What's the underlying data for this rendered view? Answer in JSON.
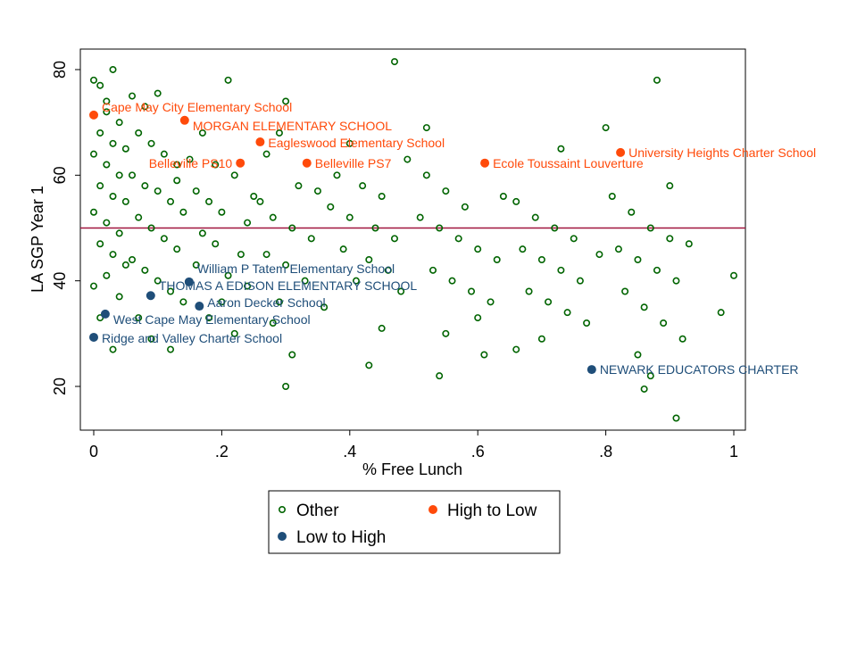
{
  "chart_data": {
    "type": "scatter",
    "title": "",
    "xlabel": "% Free Lunch",
    "ylabel": "LA SGP Year 1",
    "xlim": [
      -0.02,
      1.02
    ],
    "ylim": [
      11,
      84
    ],
    "xticks": [
      0,
      0.2,
      0.4,
      0.6,
      0.8,
      1
    ],
    "xtick_labels": [
      "0",
      ".2",
      ".4",
      ".6",
      ".8",
      "1"
    ],
    "yticks": [
      20,
      40,
      60,
      80
    ],
    "ytick_labels": [
      "20",
      "40",
      "60",
      "80"
    ],
    "grid": false,
    "reference_line": {
      "y": 50,
      "color": "#A0153E"
    },
    "legend": {
      "placement": "bottom",
      "entries": [
        "Other",
        "High to Low",
        "Low to High"
      ]
    },
    "colors": {
      "Other": "#006400",
      "High to Low": "#FF4A0A",
      "Low to High": "#1F4E79"
    },
    "series": [
      {
        "name": "Other",
        "marker": "hollow-circle",
        "points": [
          [
            0,
            78
          ],
          [
            0.01,
            77
          ],
          [
            0.03,
            80
          ],
          [
            0.02,
            72
          ],
          [
            0.01,
            68
          ],
          [
            0.03,
            66
          ],
          [
            0.0,
            64
          ],
          [
            0.02,
            62
          ],
          [
            0.04,
            60
          ],
          [
            0.01,
            58
          ],
          [
            0.03,
            56
          ],
          [
            0.05,
            55
          ],
          [
            0.0,
            53
          ],
          [
            0.02,
            51
          ],
          [
            0.04,
            49
          ],
          [
            0.01,
            47
          ],
          [
            0.03,
            45
          ],
          [
            0.05,
            43
          ],
          [
            0.02,
            41
          ],
          [
            0.0,
            39
          ],
          [
            0.04,
            37
          ],
          [
            0.03,
            27
          ],
          [
            0.01,
            33
          ],
          [
            0.05,
            65
          ],
          [
            0.04,
            70
          ],
          [
            0.02,
            74
          ],
          [
            0.06,
            75
          ],
          [
            0.08,
            73
          ],
          [
            0.1,
            75.5
          ],
          [
            0.07,
            68
          ],
          [
            0.09,
            66
          ],
          [
            0.11,
            64
          ],
          [
            0.13,
            62
          ],
          [
            0.06,
            60
          ],
          [
            0.08,
            58
          ],
          [
            0.1,
            57
          ],
          [
            0.12,
            55
          ],
          [
            0.14,
            53
          ],
          [
            0.07,
            52
          ],
          [
            0.09,
            50
          ],
          [
            0.11,
            48
          ],
          [
            0.13,
            46
          ],
          [
            0.06,
            44
          ],
          [
            0.08,
            42
          ],
          [
            0.1,
            40
          ],
          [
            0.12,
            38
          ],
          [
            0.14,
            36
          ],
          [
            0.09,
            29
          ],
          [
            0.12,
            27
          ],
          [
            0.07,
            33
          ],
          [
            0.13,
            59
          ],
          [
            0.15,
            63
          ],
          [
            0.21,
            78
          ],
          [
            0.17,
            68
          ],
          [
            0.19,
            62
          ],
          [
            0.22,
            60
          ],
          [
            0.16,
            57
          ],
          [
            0.18,
            55
          ],
          [
            0.2,
            53
          ],
          [
            0.24,
            51
          ],
          [
            0.17,
            49
          ],
          [
            0.19,
            47
          ],
          [
            0.23,
            45
          ],
          [
            0.16,
            43
          ],
          [
            0.21,
            41
          ],
          [
            0.24,
            39
          ],
          [
            0.18,
            33
          ],
          [
            0.22,
            30
          ],
          [
            0.2,
            36
          ],
          [
            0.25,
            56
          ],
          [
            0.3,
            74
          ],
          [
            0.29,
            68
          ],
          [
            0.27,
            64
          ],
          [
            0.32,
            58
          ],
          [
            0.26,
            55
          ],
          [
            0.28,
            52
          ],
          [
            0.31,
            50
          ],
          [
            0.34,
            48
          ],
          [
            0.27,
            45
          ],
          [
            0.3,
            43
          ],
          [
            0.33,
            40
          ],
          [
            0.29,
            36
          ],
          [
            0.31,
            26
          ],
          [
            0.3,
            20
          ],
          [
            0.35,
            57
          ],
          [
            0.28,
            32
          ],
          [
            0.38,
            60
          ],
          [
            0.42,
            58
          ],
          [
            0.45,
            56
          ],
          [
            0.37,
            54
          ],
          [
            0.4,
            52
          ],
          [
            0.44,
            50
          ],
          [
            0.47,
            48
          ],
          [
            0.39,
            46
          ],
          [
            0.43,
            44
          ],
          [
            0.46,
            42
          ],
          [
            0.41,
            40
          ],
          [
            0.48,
            38
          ],
          [
            0.36,
            35
          ],
          [
            0.45,
            31
          ],
          [
            0.43,
            24
          ],
          [
            0.47,
            81.5
          ],
          [
            0.49,
            63
          ],
          [
            0.4,
            66
          ],
          [
            0.52,
            60
          ],
          [
            0.55,
            57
          ],
          [
            0.58,
            54
          ],
          [
            0.51,
            52
          ],
          [
            0.54,
            50
          ],
          [
            0.57,
            48
          ],
          [
            0.6,
            46
          ],
          [
            0.63,
            44
          ],
          [
            0.53,
            42
          ],
          [
            0.56,
            40
          ],
          [
            0.59,
            38
          ],
          [
            0.62,
            36
          ],
          [
            0.55,
            30
          ],
          [
            0.61,
            26
          ],
          [
            0.54,
            22
          ],
          [
            0.52,
            69
          ],
          [
            0.64,
            56
          ],
          [
            0.6,
            33
          ],
          [
            0.66,
            55
          ],
          [
            0.69,
            52
          ],
          [
            0.72,
            50
          ],
          [
            0.75,
            48
          ],
          [
            0.67,
            46
          ],
          [
            0.7,
            44
          ],
          [
            0.73,
            42
          ],
          [
            0.76,
            40
          ],
          [
            0.68,
            38
          ],
          [
            0.71,
            36
          ],
          [
            0.74,
            34
          ],
          [
            0.77,
            32
          ],
          [
            0.7,
            29
          ],
          [
            0.73,
            65
          ],
          [
            0.8,
            69
          ],
          [
            0.79,
            45
          ],
          [
            0.66,
            27
          ],
          [
            0.81,
            56
          ],
          [
            0.84,
            53
          ],
          [
            0.87,
            50
          ],
          [
            0.9,
            48
          ],
          [
            0.82,
            46
          ],
          [
            0.85,
            44
          ],
          [
            0.88,
            42
          ],
          [
            0.91,
            40
          ],
          [
            0.83,
            38
          ],
          [
            0.86,
            35
          ],
          [
            0.89,
            32
          ],
          [
            0.92,
            29
          ],
          [
            0.85,
            26
          ],
          [
            0.86,
            19.5
          ],
          [
            0.91,
            14
          ],
          [
            0.88,
            78
          ],
          [
            0.93,
            47
          ],
          [
            0.98,
            34
          ],
          [
            1.0,
            41
          ],
          [
            0.9,
            58
          ],
          [
            0.87,
            22
          ]
        ]
      },
      {
        "name": "High to Low",
        "marker": "filled-circle",
        "points": [
          {
            "x": 0.0,
            "y": 71.4,
            "label": "Cape May City Elementary School"
          },
          {
            "x": 0.142,
            "y": 70.4,
            "label": "MORGAN ELEMENTARY SCHOOL"
          },
          {
            "x": 0.26,
            "y": 66.3,
            "label": "Eagleswood Elementary School"
          },
          {
            "x": 0.229,
            "y": 62.3,
            "label": "Belleville PS10"
          },
          {
            "x": 0.333,
            "y": 62.3,
            "label": "Belleville PS7"
          },
          {
            "x": 0.611,
            "y": 62.3,
            "label": "Ecole Toussaint Louverture"
          },
          {
            "x": 0.823,
            "y": 64.3,
            "label": "University Heights Charter School"
          }
        ]
      },
      {
        "name": "Low to High",
        "marker": "filled-circle",
        "points": [
          {
            "x": 0.149,
            "y": 39.8,
            "label": "William P Tatem Elementary School"
          },
          {
            "x": 0.089,
            "y": 37.2,
            "label": "THOMAS A EDISON ELEMENTARY SCHOOL"
          },
          {
            "x": 0.165,
            "y": 35.2,
            "label": "Aaron Decker School"
          },
          {
            "x": 0.018,
            "y": 33.7,
            "label": "West Cape May Elementary School"
          },
          {
            "x": 0.0,
            "y": 29.3,
            "label": "Ridge and Valley Charter School"
          },
          {
            "x": 0.778,
            "y": 23.2,
            "label": "NEWARK EDUCATORS CHARTER"
          }
        ]
      }
    ]
  }
}
